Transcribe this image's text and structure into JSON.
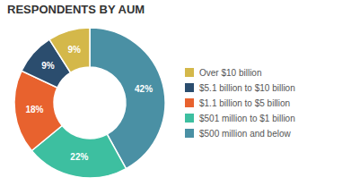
{
  "chart_data": {
    "type": "pie",
    "title": "RESPONDENTS BY AUM",
    "categories": [
      "$500 million and below",
      "$501 million to $1 billion",
      "$1.1 billion to $5 billion",
      "$5.1 billion to $10 billion",
      "Over $10 billion"
    ],
    "values": [
      42,
      22,
      18,
      9,
      9
    ],
    "value_labels": [
      "42%",
      "22%",
      "18%",
      "9%",
      "9%"
    ],
    "colors": [
      "#4a90a4",
      "#3dbfa0",
      "#e8622e",
      "#2b4d6e",
      "#d4b84a"
    ],
    "data_labels": true,
    "legend": "right"
  }
}
